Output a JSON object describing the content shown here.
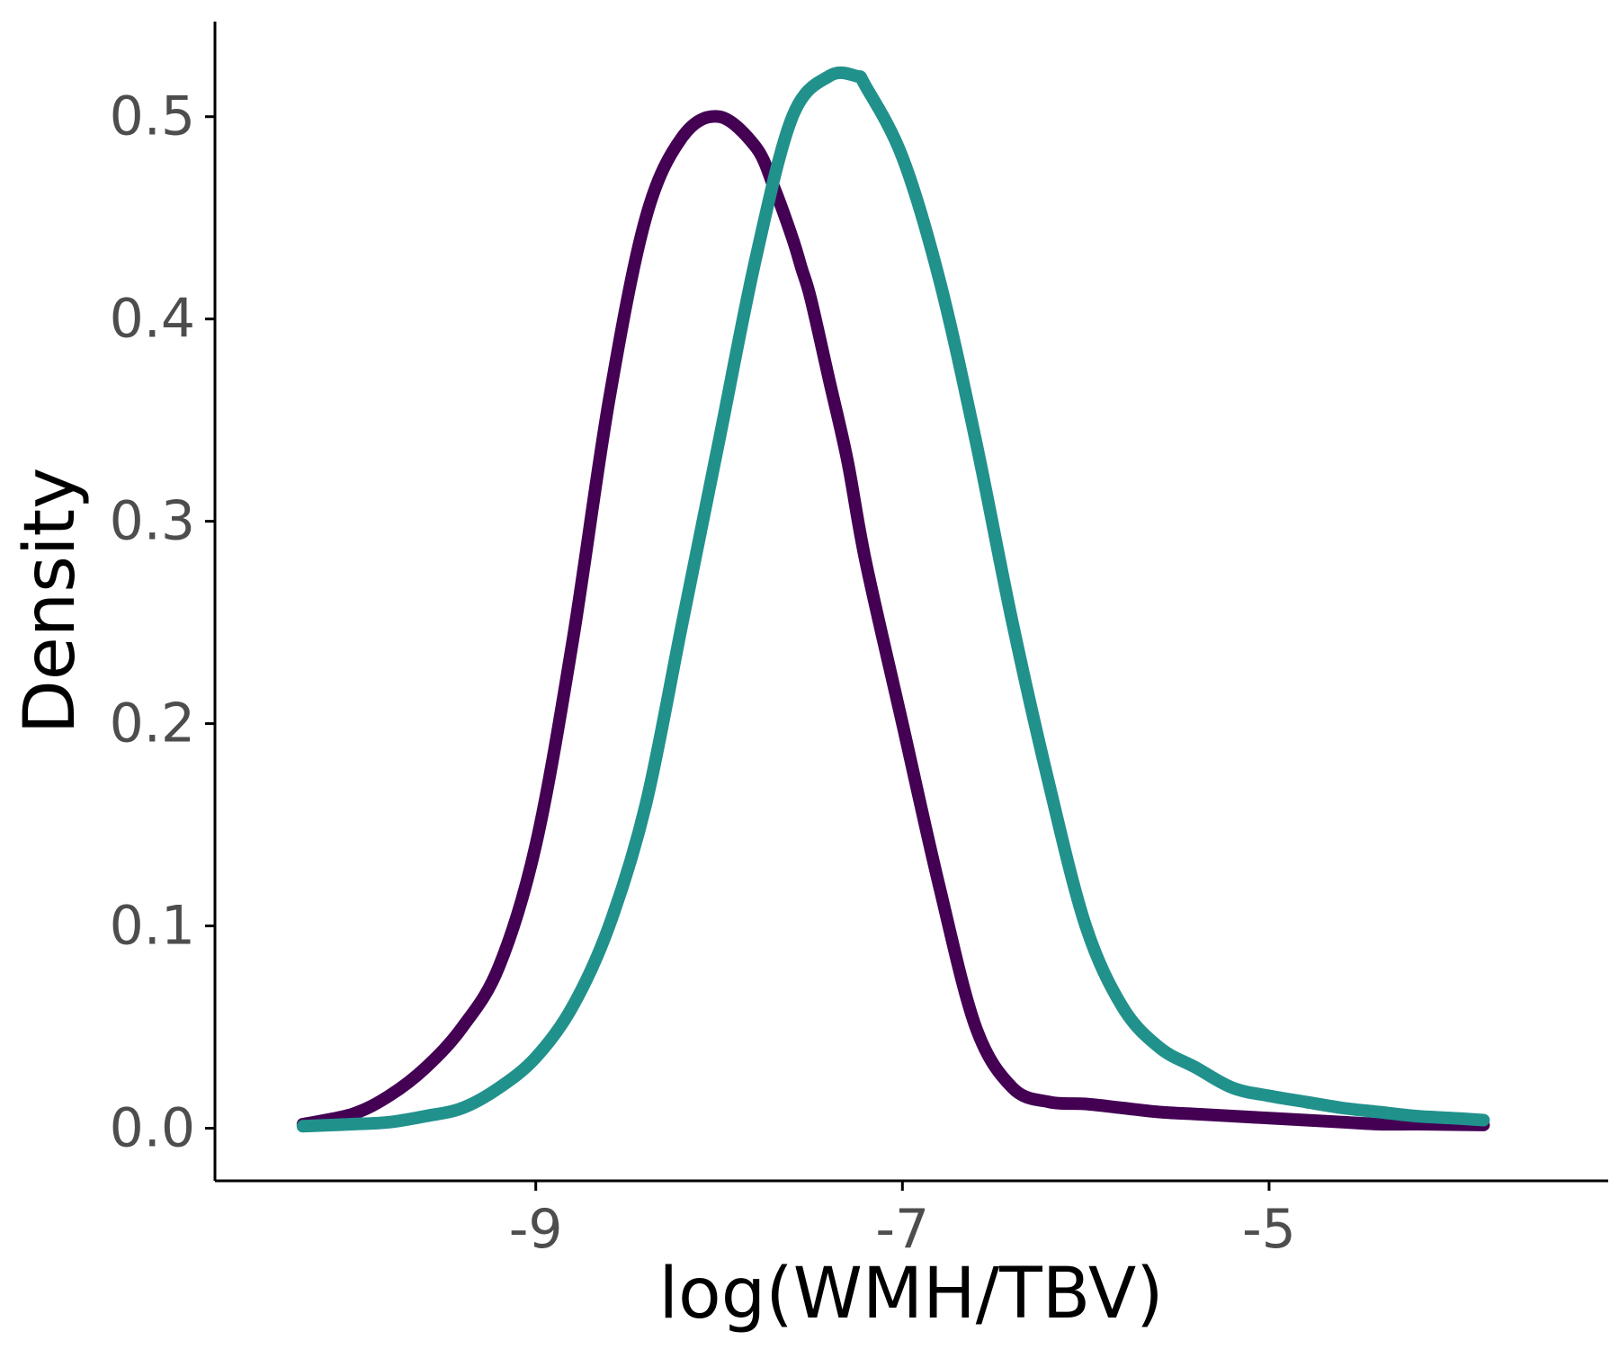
{
  "chart_data": {
    "type": "line",
    "title": "",
    "xlabel": "log(WMH/TBV)",
    "ylabel": "Density",
    "xlim": [
      -10.75,
      -3.15
    ],
    "ylim": [
      -0.026,
      0.547
    ],
    "x_ticks": [
      -9,
      -7,
      -5
    ],
    "y_ticks": [
      0.0,
      0.1,
      0.2,
      0.3,
      0.4,
      0.5
    ],
    "x_tick_labels": [
      "-9",
      "-7",
      "-5"
    ],
    "y_tick_labels": [
      "0.0",
      "0.1",
      "0.2",
      "0.3",
      "0.4",
      "0.5"
    ],
    "grid": false,
    "legend": "none",
    "series": [
      {
        "color": "#440154",
        "x": [
          -10.27,
          -10.0,
          -9.8,
          -9.6,
          -9.4,
          -9.2,
          -9.0,
          -8.8,
          -8.6,
          -8.4,
          -8.2,
          -8.0,
          -7.8,
          -7.7,
          -7.6,
          -7.55,
          -7.5,
          -7.4,
          -7.3,
          -7.2,
          -7.0,
          -6.8,
          -6.6,
          -6.4,
          -6.2,
          -6.0,
          -5.8,
          -5.6,
          -5.4,
          -5.2,
          -5.0,
          -4.8,
          -4.6,
          -4.4,
          -4.2,
          -4.0,
          -3.83
        ],
        "y": [
          0.002,
          0.007,
          0.016,
          0.03,
          0.05,
          0.08,
          0.14,
          0.24,
          0.36,
          0.45,
          0.49,
          0.5,
          0.485,
          0.465,
          0.44,
          0.425,
          0.41,
          0.37,
          0.33,
          0.28,
          0.2,
          0.12,
          0.05,
          0.02,
          0.013,
          0.012,
          0.01,
          0.008,
          0.007,
          0.006,
          0.005,
          0.004,
          0.003,
          0.002,
          0.002,
          0.0018,
          0.0016
        ]
      },
      {
        "color": "#21918c",
        "x": [
          -10.27,
          -10.0,
          -9.8,
          -9.6,
          -9.4,
          -9.2,
          -9.0,
          -8.8,
          -8.6,
          -8.4,
          -8.2,
          -8.0,
          -7.8,
          -7.6,
          -7.4,
          -7.25,
          -7.2,
          -7.0,
          -6.8,
          -6.6,
          -6.4,
          -6.2,
          -6.0,
          -5.8,
          -5.6,
          -5.4,
          -5.2,
          -5.0,
          -4.8,
          -4.6,
          -4.4,
          -4.2,
          -4.0,
          -3.83
        ],
        "y": [
          0.001,
          0.002,
          0.003,
          0.006,
          0.01,
          0.02,
          0.035,
          0.06,
          0.1,
          0.16,
          0.25,
          0.34,
          0.43,
          0.5,
          0.52,
          0.52,
          0.515,
          0.48,
          0.42,
          0.34,
          0.25,
          0.17,
          0.1,
          0.06,
          0.04,
          0.03,
          0.02,
          0.016,
          0.013,
          0.01,
          0.008,
          0.006,
          0.005,
          0.004
        ]
      }
    ]
  }
}
